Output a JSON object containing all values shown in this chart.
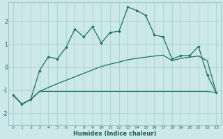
{
  "xlabel": "Humidex (Indice chaleur)",
  "background_color": "#cce8ea",
  "grid_color": "#aad0d4",
  "line_color": "#1a7060",
  "xlim": [
    -0.5,
    23.5
  ],
  "ylim": [
    -2.5,
    2.8
  ],
  "yticks": [
    -2,
    -1,
    0,
    1,
    2
  ],
  "xticks": [
    0,
    1,
    2,
    3,
    4,
    5,
    6,
    7,
    8,
    9,
    10,
    11,
    12,
    13,
    14,
    15,
    16,
    17,
    18,
    19,
    20,
    21,
    22,
    23
  ],
  "line1_y": [
    -1.2,
    -1.6,
    -1.4,
    -0.15,
    0.45,
    0.35,
    0.85,
    1.65,
    1.3,
    1.75,
    1.05,
    1.5,
    1.55,
    2.6,
    2.45,
    2.25,
    1.4,
    1.3,
    0.35,
    0.5,
    0.5,
    0.9,
    -0.35,
    -1.1
  ],
  "line2_y": [
    -1.2,
    -1.6,
    -1.4,
    -1.05,
    -1.05,
    -1.05,
    -1.05,
    -1.05,
    -1.05,
    -1.05,
    -1.05,
    -1.05,
    -1.05,
    -1.05,
    -1.05,
    -1.05,
    -1.05,
    -1.05,
    -1.05,
    -1.05,
    -1.05,
    -1.05,
    -1.05,
    -1.1
  ],
  "line3_y": [
    -1.2,
    -1.6,
    -1.4,
    -1.05,
    -0.88,
    -0.72,
    -0.57,
    -0.42,
    -0.27,
    -0.12,
    0.03,
    0.13,
    0.22,
    0.32,
    0.38,
    0.43,
    0.48,
    0.52,
    0.28,
    0.38,
    0.43,
    0.48,
    0.28,
    -1.1
  ]
}
